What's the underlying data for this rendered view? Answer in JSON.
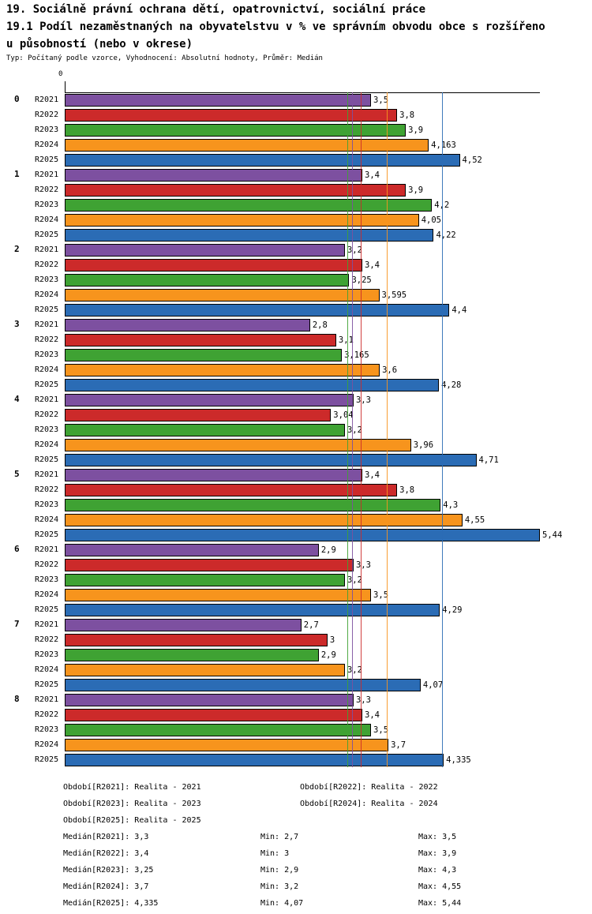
{
  "title": {
    "line1": "19. Sociálně právní ochrana dětí, opatrovnictví, sociální práce",
    "line2": "19.1 Podíl nezaměstnaných na obyvatelstvu v % ve správním obvodu obce s rozšířeno",
    "line3": "u působností (nebo v okrese)",
    "meta": "Typ: Počítaný podle vzorce, Vyhodnocení: Absolutní hodnoty, Průměr: Medián"
  },
  "chart_data": {
    "type": "bar",
    "orientation": "horizontal",
    "origin_label": "0",
    "xlim": [
      0,
      5.46
    ],
    "grid": false,
    "categories": [
      "0",
      "1",
      "2",
      "3",
      "4",
      "5",
      "6",
      "7",
      "8"
    ],
    "series": [
      {
        "name": "R2021",
        "color": "#7d50a0",
        "median": 3.3,
        "values": [
          3.5,
          3.4,
          3.2,
          2.8,
          3.3,
          3.4,
          2.9,
          2.7,
          3.3
        ]
      },
      {
        "name": "R2022",
        "color": "#cc2a2a",
        "median": 3.4,
        "values": [
          3.8,
          3.9,
          3.4,
          3.1,
          3.04,
          3.8,
          3.3,
          3,
          3.4
        ]
      },
      {
        "name": "R2023",
        "color": "#3fa233",
        "median": 3.25,
        "values": [
          3.9,
          4.2,
          3.25,
          3.165,
          3.2,
          4.3,
          3.2,
          2.9,
          3.5
        ]
      },
      {
        "name": "R2024",
        "color": "#f7941d",
        "median": 3.7,
        "values": [
          4.163,
          4.05,
          3.595,
          3.6,
          3.96,
          4.55,
          3.5,
          3.2,
          3.7
        ]
      },
      {
        "name": "R2025",
        "color": "#2b6cb5",
        "median": 4.335,
        "values": [
          4.52,
          4.22,
          4.4,
          4.28,
          4.71,
          5.44,
          4.29,
          4.07,
          4.335
        ]
      }
    ]
  },
  "legend": {
    "periods": [
      "Období[R2021]: Realita - 2021",
      "Období[R2022]: Realita - 2022",
      "Období[R2023]: Realita - 2023",
      "Období[R2024]: Realita - 2024",
      "Období[R2025]: Realita - 2025"
    ],
    "stats": [
      {
        "median": "Medián[R2021]: 3,3",
        "min": "Min: 2,7",
        "max": "Max: 3,5"
      },
      {
        "median": "Medián[R2022]: 3,4",
        "min": "Min: 3",
        "max": "Max: 3,9"
      },
      {
        "median": "Medián[R2023]: 3,25",
        "min": "Min: 2,9",
        "max": "Max: 4,3"
      },
      {
        "median": "Medián[R2024]: 3,7",
        "min": "Min: 3,2",
        "max": "Max: 4,55"
      },
      {
        "median": "Medián[R2025]: 4,335",
        "min": "Min: 4,07",
        "max": "Max: 5,44"
      }
    ]
  }
}
